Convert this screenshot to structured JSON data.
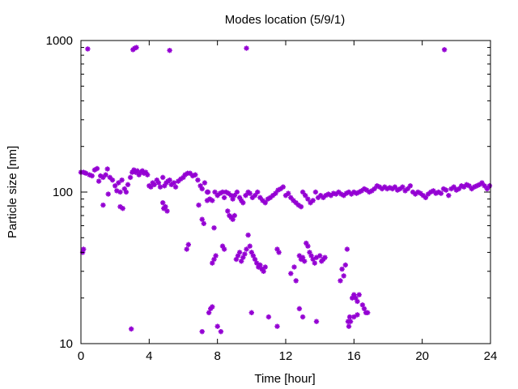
{
  "chart_data": {
    "type": "scatter",
    "title": "Modes location (5/9/1)",
    "xlabel": "Time [hour]",
    "ylabel": "Particle size [nm]",
    "xlim": [
      0,
      24
    ],
    "ylim": [
      10,
      1000
    ],
    "yscale": "log",
    "grid": false,
    "legend": "none",
    "color": "#9400d3",
    "x_ticks": [
      0,
      4,
      8,
      12,
      16,
      20,
      24
    ],
    "x_tick_labels": [
      "0",
      "4",
      "8",
      "12",
      "16",
      "20",
      "24"
    ],
    "y_ticks": [
      10,
      100,
      1000
    ],
    "y_tick_labels": [
      "10",
      "100",
      "1000"
    ],
    "series": [
      {
        "points": [
          [
            0.0,
            135
          ],
          [
            0.15,
            135
          ],
          [
            0.3,
            133
          ],
          [
            0.5,
            130
          ],
          [
            0.65,
            128
          ],
          [
            0.8,
            140
          ],
          [
            0.95,
            143
          ],
          [
            1.05,
            118
          ],
          [
            1.15,
            128
          ],
          [
            1.3,
            125
          ],
          [
            1.45,
            130
          ],
          [
            1.55,
            142
          ],
          [
            1.6,
            97
          ],
          [
            1.7,
            125
          ],
          [
            1.85,
            120
          ],
          [
            2.0,
            110
          ],
          [
            2.1,
            102
          ],
          [
            2.2,
            115
          ],
          [
            2.3,
            100
          ],
          [
            2.4,
            120
          ],
          [
            2.55,
            105
          ],
          [
            2.65,
            100
          ],
          [
            2.75,
            112
          ],
          [
            2.9,
            125
          ],
          [
            3.0,
            135
          ],
          [
            3.1,
            140
          ],
          [
            3.2,
            135
          ],
          [
            3.3,
            138
          ],
          [
            3.4,
            130
          ],
          [
            3.5,
            135
          ],
          [
            3.6,
            138
          ],
          [
            3.7,
            133
          ],
          [
            3.8,
            135
          ],
          [
            3.9,
            130
          ],
          [
            4.0,
            110
          ],
          [
            4.1,
            108
          ],
          [
            4.2,
            115
          ],
          [
            4.3,
            112
          ],
          [
            4.45,
            120
          ],
          [
            4.55,
            115
          ],
          [
            4.65,
            108
          ],
          [
            4.8,
            125
          ],
          [
            4.9,
            110
          ],
          [
            5.0,
            115
          ],
          [
            5.1,
            118
          ],
          [
            5.2,
            120
          ],
          [
            5.3,
            112
          ],
          [
            5.45,
            115
          ],
          [
            5.55,
            108
          ],
          [
            5.7,
            118
          ],
          [
            5.85,
            122
          ],
          [
            6.0,
            125
          ],
          [
            6.1,
            130
          ],
          [
            6.25,
            133
          ],
          [
            6.4,
            133
          ],
          [
            6.55,
            128
          ],
          [
            6.7,
            130
          ],
          [
            6.85,
            120
          ],
          [
            7.0,
            110
          ],
          [
            7.1,
            105
          ],
          [
            7.25,
            115
          ],
          [
            7.4,
            100
          ],
          [
            7.55,
            90
          ],
          [
            7.7,
            88
          ],
          [
            7.85,
            100
          ],
          [
            8.0,
            95
          ],
          [
            8.15,
            98
          ],
          [
            8.3,
            100
          ],
          [
            8.4,
            92
          ],
          [
            8.5,
            100
          ],
          [
            8.65,
            98
          ],
          [
            8.8,
            95
          ],
          [
            8.9,
            90
          ],
          [
            9.0,
            95
          ],
          [
            9.15,
            100
          ],
          [
            9.3,
            92
          ],
          [
            9.4,
            88
          ],
          [
            9.5,
            85
          ],
          [
            9.65,
            95
          ],
          [
            9.8,
            100
          ],
          [
            9.9,
            98
          ],
          [
            10.05,
            92
          ],
          [
            10.2,
            95
          ],
          [
            10.35,
            100
          ],
          [
            10.5,
            92
          ],
          [
            10.65,
            88
          ],
          [
            10.8,
            85
          ],
          [
            10.95,
            90
          ],
          [
            11.1,
            92
          ],
          [
            11.25,
            95
          ],
          [
            11.4,
            98
          ],
          [
            11.55,
            103
          ],
          [
            11.7,
            105
          ],
          [
            11.85,
            108
          ],
          [
            12.0,
            95
          ],
          [
            12.15,
            98
          ],
          [
            12.3,
            92
          ],
          [
            12.45,
            88
          ],
          [
            12.6,
            85
          ],
          [
            12.75,
            82
          ],
          [
            12.9,
            80
          ],
          [
            13.0,
            100
          ],
          [
            13.15,
            95
          ],
          [
            13.3,
            90
          ],
          [
            13.45,
            85
          ],
          [
            13.6,
            88
          ],
          [
            13.75,
            100
          ],
          [
            13.9,
            92
          ],
          [
            14.05,
            95
          ],
          [
            14.2,
            92
          ],
          [
            14.35,
            95
          ],
          [
            14.5,
            97
          ],
          [
            14.65,
            95
          ],
          [
            14.8,
            98
          ],
          [
            14.95,
            97
          ],
          [
            15.1,
            100
          ],
          [
            15.25,
            97
          ],
          [
            15.4,
            95
          ],
          [
            15.55,
            98
          ],
          [
            15.7,
            100
          ],
          [
            15.85,
            97
          ],
          [
            16.0,
            100
          ],
          [
            16.15,
            98
          ],
          [
            16.3,
            100
          ],
          [
            16.45,
            102
          ],
          [
            16.6,
            105
          ],
          [
            16.75,
            103
          ],
          [
            16.9,
            100
          ],
          [
            17.05,
            102
          ],
          [
            17.2,
            105
          ],
          [
            17.35,
            110
          ],
          [
            17.5,
            108
          ],
          [
            17.65,
            105
          ],
          [
            17.8,
            108
          ],
          [
            17.95,
            105
          ],
          [
            18.1,
            107
          ],
          [
            18.25,
            105
          ],
          [
            18.4,
            108
          ],
          [
            18.55,
            103
          ],
          [
            18.7,
            105
          ],
          [
            18.85,
            108
          ],
          [
            19.0,
            102
          ],
          [
            19.15,
            105
          ],
          [
            19.3,
            110
          ],
          [
            19.45,
            100
          ],
          [
            19.6,
            97
          ],
          [
            19.75,
            100
          ],
          [
            19.9,
            98
          ],
          [
            20.05,
            95
          ],
          [
            20.2,
            92
          ],
          [
            20.35,
            97
          ],
          [
            20.5,
            100
          ],
          [
            20.65,
            102
          ],
          [
            20.8,
            98
          ],
          [
            20.95,
            100
          ],
          [
            21.1,
            98
          ],
          [
            21.25,
            105
          ],
          [
            21.4,
            103
          ],
          [
            21.55,
            95
          ],
          [
            21.7,
            105
          ],
          [
            21.85,
            108
          ],
          [
            22.0,
            103
          ],
          [
            22.15,
            105
          ],
          [
            22.3,
            110
          ],
          [
            22.45,
            108
          ],
          [
            22.6,
            112
          ],
          [
            22.75,
            110
          ],
          [
            22.9,
            105
          ],
          [
            23.05,
            108
          ],
          [
            23.2,
            110
          ],
          [
            23.35,
            112
          ],
          [
            23.5,
            115
          ],
          [
            23.65,
            110
          ],
          [
            23.8,
            105
          ],
          [
            23.95,
            110
          ],
          [
            0.1,
            40
          ],
          [
            0.15,
            42
          ],
          [
            1.3,
            82
          ],
          [
            2.3,
            80
          ],
          [
            2.45,
            78
          ],
          [
            4.8,
            85
          ],
          [
            4.85,
            78
          ],
          [
            4.95,
            80
          ],
          [
            5.05,
            75
          ],
          [
            6.2,
            42
          ],
          [
            6.3,
            45
          ],
          [
            6.9,
            82
          ],
          [
            7.1,
            66
          ],
          [
            7.2,
            62
          ],
          [
            7.4,
            88
          ],
          [
            7.45,
            100
          ],
          [
            7.8,
            58
          ],
          [
            7.7,
            34
          ],
          [
            7.8,
            36
          ],
          [
            7.9,
            38
          ],
          [
            8.3,
            44
          ],
          [
            8.4,
            42
          ],
          [
            8.6,
            75
          ],
          [
            8.7,
            70
          ],
          [
            8.8,
            68
          ],
          [
            8.9,
            66
          ],
          [
            9.0,
            70
          ],
          [
            9.1,
            36
          ],
          [
            9.2,
            38
          ],
          [
            9.3,
            40
          ],
          [
            9.4,
            35
          ],
          [
            9.5,
            37
          ],
          [
            9.6,
            39
          ],
          [
            9.7,
            42
          ],
          [
            9.8,
            52
          ],
          [
            9.9,
            44
          ],
          [
            10.0,
            40
          ],
          [
            10.1,
            38
          ],
          [
            10.2,
            36
          ],
          [
            10.3,
            34
          ],
          [
            10.4,
            32
          ],
          [
            10.5,
            33
          ],
          [
            10.6,
            31
          ],
          [
            10.7,
            30
          ],
          [
            10.8,
            32
          ],
          [
            11.5,
            42
          ],
          [
            11.6,
            40
          ],
          [
            12.8,
            38
          ],
          [
            12.9,
            36
          ],
          [
            13.0,
            37
          ],
          [
            13.1,
            35
          ],
          [
            13.2,
            46
          ],
          [
            13.3,
            44
          ],
          [
            13.4,
            40
          ],
          [
            13.5,
            38
          ],
          [
            13.6,
            36
          ],
          [
            13.7,
            34
          ],
          [
            13.8,
            37
          ],
          [
            14.0,
            38
          ],
          [
            14.1,
            35
          ],
          [
            14.2,
            36
          ],
          [
            14.3,
            37
          ],
          [
            8.0,
            13
          ],
          [
            8.2,
            12
          ],
          [
            10.0,
            16
          ],
          [
            11.0,
            15
          ],
          [
            11.5,
            13
          ],
          [
            12.3,
            29
          ],
          [
            12.5,
            32
          ],
          [
            12.6,
            26
          ],
          [
            12.8,
            17
          ],
          [
            13.0,
            15
          ],
          [
            13.8,
            14
          ],
          [
            15.2,
            26
          ],
          [
            15.3,
            31
          ],
          [
            15.4,
            28
          ],
          [
            15.5,
            33
          ],
          [
            15.6,
            42
          ],
          [
            15.65,
            14
          ],
          [
            15.7,
            13
          ],
          [
            15.75,
            15
          ],
          [
            15.8,
            14
          ],
          [
            15.9,
            20
          ],
          [
            16.0,
            21
          ],
          [
            16.1,
            20
          ],
          [
            16.2,
            19
          ],
          [
            16.3,
            21
          ],
          [
            16.5,
            18
          ],
          [
            16.6,
            17
          ],
          [
            16.7,
            16
          ],
          [
            16.8,
            16
          ],
          [
            2.95,
            12.5
          ],
          [
            7.1,
            12
          ],
          [
            7.5,
            16
          ],
          [
            7.6,
            17
          ],
          [
            7.7,
            17.5
          ],
          [
            16.0,
            15
          ],
          [
            16.2,
            15.5
          ],
          [
            0.4,
            880
          ],
          [
            3.05,
            870
          ],
          [
            3.15,
            890
          ],
          [
            3.25,
            900
          ],
          [
            5.2,
            860
          ],
          [
            9.7,
            890
          ],
          [
            21.3,
            870
          ]
        ]
      }
    ]
  }
}
